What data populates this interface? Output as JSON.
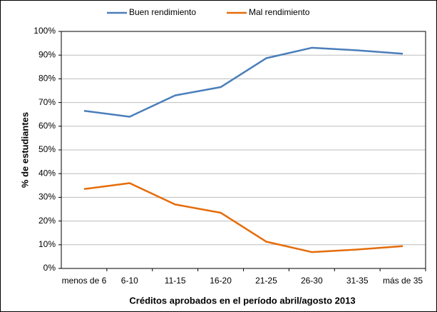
{
  "chart_data": {
    "type": "line",
    "categories": [
      "menos de 6",
      "6-10",
      "11-15",
      "16-20",
      "21-25",
      "26-30",
      "31-35",
      "más de 35"
    ],
    "series": [
      {
        "name": "Buen rendimiento",
        "color": "#4a7ebb",
        "values": [
          66.5,
          64,
          73,
          76.5,
          88.7,
          93.1,
          92,
          90.6
        ]
      },
      {
        "name": "Mal rendimiento",
        "color": "#e46c0a",
        "values": [
          33.5,
          36,
          27,
          23.5,
          11.3,
          6.9,
          8,
          9.4
        ]
      }
    ],
    "ylim": [
      0,
      100
    ],
    "yticks": [
      {
        "value": 0,
        "label": "0%"
      },
      {
        "value": 10,
        "label": "10%"
      },
      {
        "value": 20,
        "label": "20%"
      },
      {
        "value": 30,
        "label": "30%"
      },
      {
        "value": 40,
        "label": "40%"
      },
      {
        "value": 50,
        "label": "50%"
      },
      {
        "value": 60,
        "label": "60%"
      },
      {
        "value": 70,
        "label": "70%"
      },
      {
        "value": 80,
        "label": "80%"
      },
      {
        "value": 90,
        "label": "90%"
      },
      {
        "value": 100,
        "label": "100%"
      }
    ],
    "ylabel": "% de estudiantes",
    "xlabel": "Créditos aprobados en el período abril/agosto 2013",
    "grid": true,
    "legend": "top"
  }
}
